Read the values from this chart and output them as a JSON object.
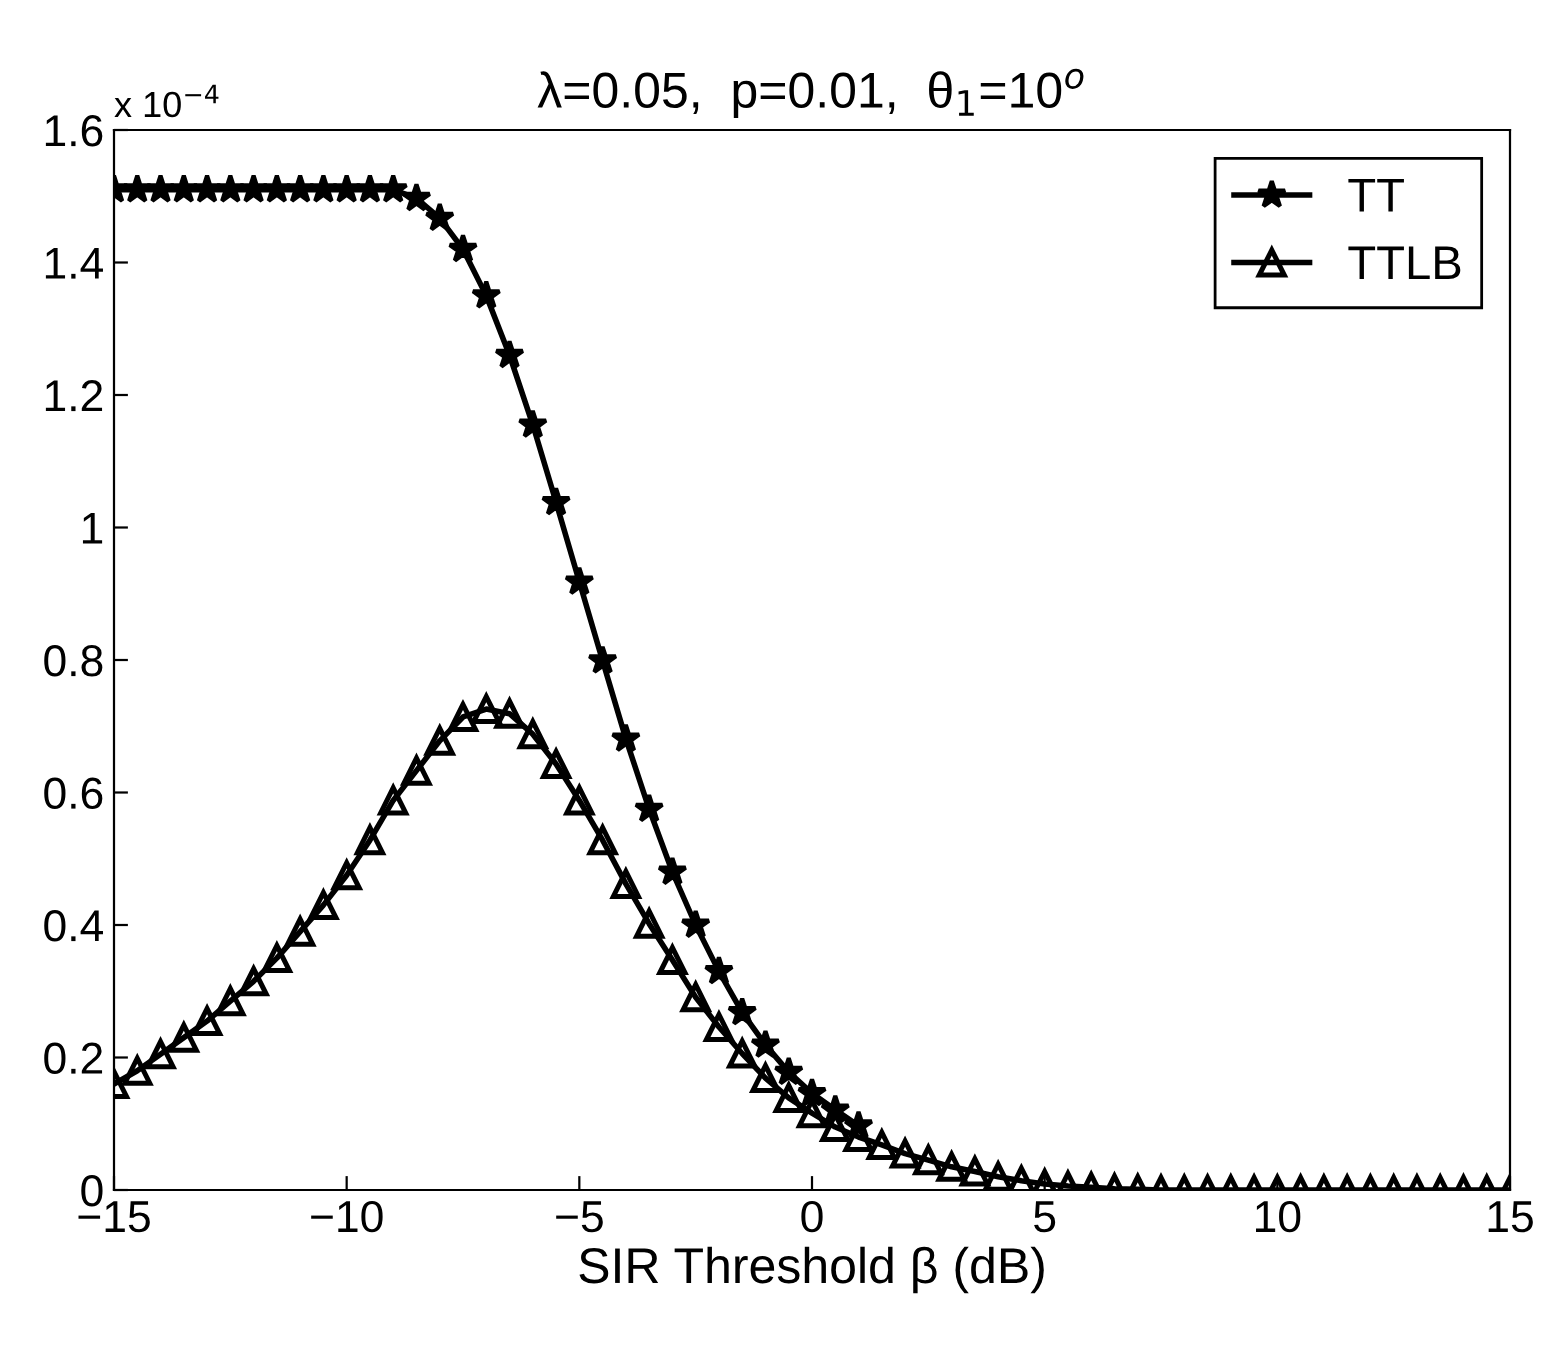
{
  "chart_data": {
    "type": "line",
    "title": "λ=0.05,  p=0.01,  θ$_{1}$=10$^{o}$",
    "xlabel": "SIR Threshold β (dB)",
    "annotations": [
      "x 10$^{−4}$"
    ],
    "x": [
      -15,
      -14.5,
      -14,
      -13.5,
      -13,
      -12.5,
      -12,
      -11.5,
      -11,
      -10.5,
      -10,
      -9.5,
      -9,
      -8.5,
      -8,
      -7.5,
      -7,
      -6.5,
      -6,
      -5.5,
      -5,
      -4.5,
      -4,
      -3.5,
      -3,
      -2.5,
      -2,
      -1.5,
      -1,
      -0.5,
      0,
      0.5,
      1,
      1.5,
      2,
      2.5,
      3,
      3.5,
      4,
      4.5,
      5,
      5.5,
      6,
      6.5,
      7,
      7.5,
      8,
      8.5,
      9,
      9.5,
      10,
      10.5,
      11,
      11.5,
      12,
      12.5,
      13,
      13.5,
      14,
      14.5,
      15
    ],
    "series": [
      {
        "name": "TT",
        "color": "#000000",
        "marker": "star",
        "values": [
          1.51,
          1.51,
          1.51,
          1.51,
          1.51,
          1.51,
          1.51,
          1.51,
          1.51,
          1.51,
          1.51,
          1.51,
          1.51,
          1.497,
          1.467,
          1.42,
          1.35,
          1.26,
          1.155,
          1.038,
          0.918,
          0.799,
          0.681,
          0.575,
          0.48,
          0.4,
          0.33,
          0.268,
          0.219,
          0.178,
          0.146,
          0.121,
          0.097,
          null,
          null,
          null,
          null,
          null,
          null,
          null,
          null,
          null,
          null,
          null,
          null,
          null,
          null,
          null,
          null,
          null,
          null,
          null,
          null,
          null,
          null,
          null,
          null,
          null,
          null,
          null,
          null
        ]
      },
      {
        "name": "TTLB",
        "color": "#000000",
        "marker": "triangle",
        "values": [
          0.16,
          0.18,
          0.205,
          0.23,
          0.255,
          0.285,
          0.315,
          0.35,
          0.39,
          0.43,
          0.475,
          0.528,
          0.588,
          0.633,
          0.678,
          0.714,
          0.726,
          0.719,
          0.688,
          0.643,
          0.588,
          0.528,
          0.462,
          0.402,
          0.347,
          0.291,
          0.246,
          0.206,
          0.169,
          0.139,
          0.116,
          0.095,
          0.08,
          0.068,
          0.055,
          0.045,
          0.035,
          0.028,
          0.02,
          0.014,
          0.009,
          0.006,
          0.004,
          0.002,
          0.001,
          0,
          0,
          0,
          0,
          0,
          0,
          0,
          0,
          0,
          0,
          0,
          0,
          0,
          0,
          0,
          0
        ]
      }
    ],
    "xlim": [
      -15,
      15
    ],
    "xticks": [
      {
        "value": -15,
        "label": "−15"
      },
      {
        "value": -10,
        "label": "−10"
      },
      {
        "value": -5,
        "label": "−5"
      },
      0,
      5,
      10,
      15
    ],
    "ylim": [
      0,
      1.6
    ],
    "yticks": [
      0,
      0.2,
      0.4,
      0.6,
      0.8,
      1,
      1.2,
      1.4,
      1.6
    ],
    "grid": false,
    "legend": "top right",
    "line_style": "solid"
  }
}
